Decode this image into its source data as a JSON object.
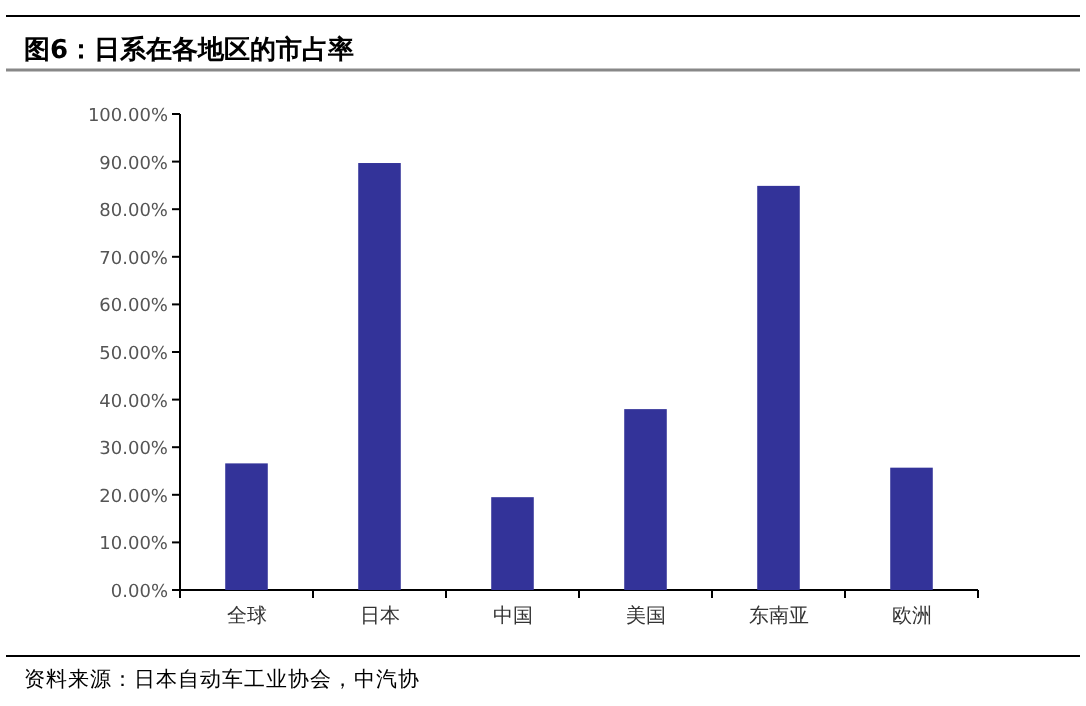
{
  "chart_data": {
    "type": "bar",
    "title": "图6：日系在各地区的市占率",
    "categories": [
      "全球",
      "日本",
      "中国",
      "美国",
      "东南亚",
      "欧洲"
    ],
    "values": [
      26.6,
      89.7,
      19.5,
      38.0,
      84.9,
      25.7
    ],
    "color": "#333399",
    "ylim": [
      0,
      100
    ],
    "yticks": [
      {
        "value": 0,
        "label": "0.00%"
      },
      {
        "value": 10,
        "label": "10.00%"
      },
      {
        "value": 20,
        "label": "20.00%"
      },
      {
        "value": 30,
        "label": "30.00%"
      },
      {
        "value": 40,
        "label": "40.00%"
      },
      {
        "value": 50,
        "label": "50.00%"
      },
      {
        "value": 60,
        "label": "60.00%"
      },
      {
        "value": 70,
        "label": "70.00%"
      },
      {
        "value": 80,
        "label": "80.00%"
      },
      {
        "value": 90,
        "label": "90.00%"
      },
      {
        "value": 100,
        "label": "100.00%"
      }
    ],
    "grid": false,
    "annotations": [
      "资料来源：日本自动车工业协会，中汽协"
    ]
  }
}
